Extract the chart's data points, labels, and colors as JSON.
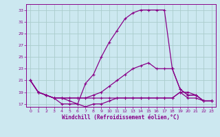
{
  "xlabel": "Windchill (Refroidissement éolien,°C)",
  "bg_color": "#cce8f0",
  "line_color": "#880088",
  "grid_color": "#aacccc",
  "xlim": [
    -0.5,
    23.5
  ],
  "ylim": [
    16.5,
    34
  ],
  "xticks": [
    0,
    1,
    2,
    3,
    4,
    5,
    6,
    7,
    8,
    9,
    10,
    11,
    12,
    13,
    14,
    15,
    16,
    17,
    18,
    19,
    20,
    21,
    22,
    23
  ],
  "yticks": [
    17,
    19,
    21,
    23,
    25,
    27,
    29,
    31,
    33
  ],
  "line1_x": [
    0,
    1,
    2,
    3,
    4,
    5,
    6,
    7,
    8,
    9,
    10,
    11,
    12,
    13,
    14,
    15,
    16,
    17,
    18,
    19,
    20,
    21,
    22,
    23
  ],
  "line1_y": [
    21,
    19,
    18.5,
    18,
    17,
    17,
    17,
    20.5,
    22,
    25,
    27.5,
    29.5,
    31.5,
    32.5,
    33,
    33,
    33,
    33,
    23,
    19.5,
    18.5,
    18.5,
    17.5,
    17.5
  ],
  "line2_x": [
    0,
    1,
    2,
    3,
    4,
    5,
    6,
    7,
    8,
    9,
    10,
    11,
    12,
    13,
    14,
    15,
    16,
    17,
    18,
    19,
    20,
    21,
    22,
    23
  ],
  "line2_y": [
    21,
    19,
    18.5,
    18,
    18,
    18,
    18,
    18,
    18.5,
    19,
    20,
    21,
    22,
    23,
    23.5,
    24,
    23,
    23,
    23,
    19.5,
    18.5,
    18.5,
    17.5,
    17.5
  ],
  "line3_x": [
    0,
    1,
    2,
    3,
    4,
    5,
    6,
    7,
    8,
    9,
    10,
    11,
    12,
    13,
    14,
    15,
    16,
    17,
    18,
    19,
    20,
    21,
    22,
    23
  ],
  "line3_y": [
    21,
    19,
    18.5,
    18,
    18,
    18,
    18,
    18,
    18,
    18,
    18,
    18,
    18,
    18,
    18,
    18,
    18,
    18,
    18,
    19,
    18,
    18,
    17.5,
    17.5
  ],
  "line4_x": [
    0,
    1,
    2,
    3,
    4,
    5,
    6,
    7,
    8,
    9,
    10,
    11,
    12,
    13,
    14,
    15,
    16,
    17,
    18,
    19,
    20,
    21,
    22,
    23
  ],
  "line4_y": [
    21,
    19,
    18.5,
    18,
    18,
    17.5,
    17,
    16.5,
    17,
    17,
    17.5,
    18,
    18,
    18,
    18,
    18,
    18,
    18,
    18,
    19,
    19,
    18.5,
    17.5,
    17.5
  ]
}
